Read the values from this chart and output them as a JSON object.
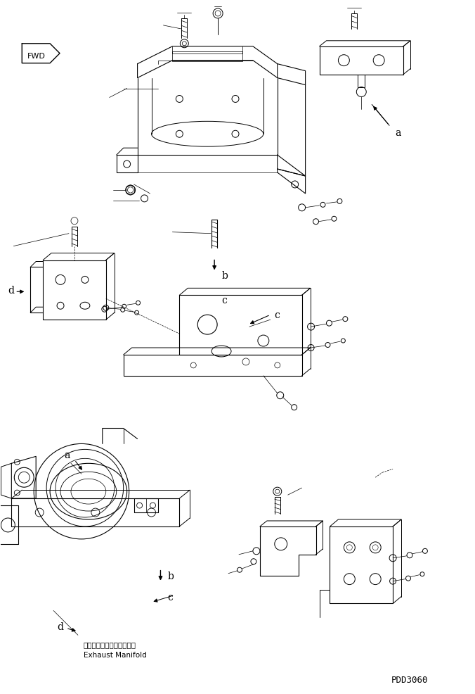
{
  "fig_width": 6.76,
  "fig_height": 9.87,
  "dpi": 100,
  "bg_color": "#ffffff",
  "line_color": "#000000",
  "exhaust_manifold_jp": "エキゾーストマニホールド",
  "exhaust_manifold_en": "Exhaust Manifold",
  "fwd_text": "FWD",
  "title_bottom_text": "PDD3060"
}
